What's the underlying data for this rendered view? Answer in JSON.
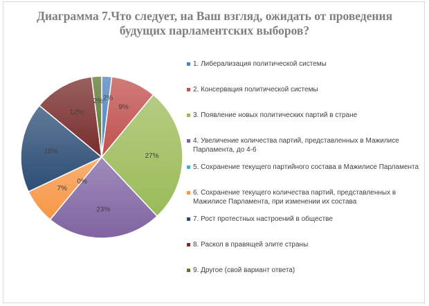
{
  "chart_data": {
    "type": "pie",
    "title": "Диаграмма 7.Что следует, на Ваш взгляд, ожидать от проведения будущих парламентских выборов?",
    "categories": [
      "1. Либерализация политической системы",
      "2. Консервация политической системы",
      "3. Появление новых политических партий в стране",
      "4. Увеличение количества партий, представленных в Мажилисе Парламента, до 4-6",
      "5. Сохранение текущего партийного состава в Мажилисе Парламента",
      "6. Сохранение текущего количества партий, представленных в Мажилисе Парламента, при изменении их состава",
      "7. Рост протестных настроений в обществе",
      "8. Раскол в правящей элите страны",
      "9. Другое (свой вариант ответа)"
    ],
    "values": [
      2,
      9,
      27,
      23,
      0,
      7,
      18,
      12,
      2
    ],
    "labels": [
      "2%",
      "9%",
      "27%",
      "23%",
      "0%",
      "7%",
      "18%",
      "12%",
      "2%"
    ],
    "colors": [
      "#4f81bd",
      "#c0504d",
      "#9bbb59",
      "#8064a2",
      "#4bacc6",
      "#f79646",
      "#2c4d75",
      "#772c2a",
      "#5f7530"
    ],
    "legend_position": "right"
  }
}
